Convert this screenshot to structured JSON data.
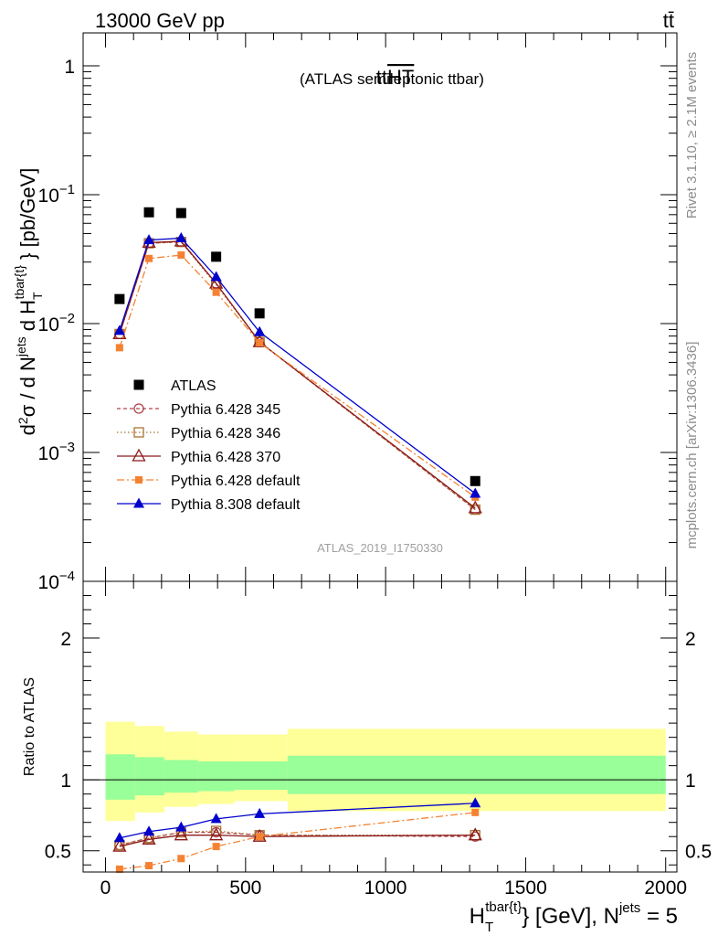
{
  "header": {
    "left": "13000 GeV pp",
    "right": "tt̄"
  },
  "side_labels": {
    "rivet": "Rivet 3.1.10, ≥ 2.1M events",
    "mcplots": "mcplots.cern.ch [arXiv:1306.3436]"
  },
  "chart_data": [
    {
      "type": "line",
      "title": "tt",
      "title_overline": "HT",
      "subtitle": "(ATLAS semileptonic ttbar)",
      "watermark": "ATLAS_2019_I1750330",
      "ylabel": "d²σ / d N^jets d H_T^tbar{t} [pb/GeV]",
      "yscale": "log",
      "ylim": [
        0.0001,
        1.8
      ],
      "xlim": [
        -80,
        2040
      ],
      "ytick_labels": [
        "1",
        "10",
        "10",
        "10",
        "10"
      ],
      "ytick_exponents": [
        "",
        "−1",
        "−2",
        "−3",
        "−4"
      ],
      "legend_position": "lower-left",
      "x": [
        50,
        155,
        270,
        395,
        550,
        1320
      ],
      "series": [
        {
          "name": "ATLAS",
          "color": "#000000",
          "marker": "square",
          "values": [
            0.0155,
            0.073,
            0.072,
            0.033,
            0.012,
            0.0006
          ]
        },
        {
          "name": "Pythia 6.428 345",
          "color": "#b04048",
          "marker": "circle-open",
          "dash": "4,3",
          "values": [
            0.0083,
            0.042,
            0.043,
            0.0205,
            0.0072,
            0.00036
          ]
        },
        {
          "name": "Pythia 6.428 346",
          "color": "#a87430",
          "marker": "square-open",
          "dash": "1.5,2.5",
          "values": [
            0.0083,
            0.042,
            0.043,
            0.02,
            0.0072,
            0.00036
          ]
        },
        {
          "name": "Pythia 6.428 370",
          "color": "#8b1a1a",
          "marker": "triangle-open",
          "dash": "",
          "values": [
            0.0083,
            0.0425,
            0.0435,
            0.0205,
            0.0072,
            0.00037
          ]
        },
        {
          "name": "Pythia 6.428 default",
          "color": "#f58232",
          "marker": "square-small",
          "dash": "8,3,2,3",
          "values": [
            0.0065,
            0.032,
            0.034,
            0.0175,
            0.0071,
            0.00045
          ]
        },
        {
          "name": "Pythia 8.308 default",
          "color": "#0000cc",
          "marker": "triangle",
          "dash": "",
          "values": [
            0.0088,
            0.0445,
            0.046,
            0.023,
            0.0086,
            0.00048
          ]
        }
      ]
    },
    {
      "type": "line",
      "ylabel": "Ratio to ATLAS",
      "xlabel": "H_T^tbar{t} [GeV], N^jets = 5",
      "ylim": [
        0.35,
        2.4
      ],
      "xlim": [
        -80,
        2040
      ],
      "xticks": [
        0,
        500,
        1000,
        1500,
        2000
      ],
      "yticks": [
        0.5,
        1,
        2
      ],
      "ytick_labels": [
        "0.5",
        "1",
        "2"
      ],
      "reference": 1,
      "bands": [
        {
          "x0": 0,
          "x1": 105,
          "yellow": [
            0.71,
            1.41
          ],
          "green": [
            0.86,
            1.18
          ]
        },
        {
          "x0": 105,
          "x1": 210,
          "yellow": [
            0.77,
            1.38
          ],
          "green": [
            0.89,
            1.16
          ]
        },
        {
          "x0": 210,
          "x1": 330,
          "yellow": [
            0.81,
            1.34
          ],
          "green": [
            0.91,
            1.14
          ]
        },
        {
          "x0": 330,
          "x1": 460,
          "yellow": [
            0.83,
            1.32
          ],
          "green": [
            0.92,
            1.13
          ]
        },
        {
          "x0": 460,
          "x1": 650,
          "yellow": [
            0.85,
            1.32
          ],
          "green": [
            0.93,
            1.13
          ]
        },
        {
          "x0": 650,
          "x1": 2000,
          "yellow": [
            0.78,
            1.36
          ],
          "green": [
            0.9,
            1.17
          ]
        }
      ],
      "series": [
        {
          "name": "Pythia 6.428 345",
          "values": [
            0.54,
            0.59,
            0.63,
            0.63,
            0.61,
            0.6
          ]
        },
        {
          "name": "Pythia 6.428 346",
          "values": [
            0.54,
            0.59,
            0.63,
            0.64,
            0.61,
            0.61
          ]
        },
        {
          "name": "Pythia 6.428 370",
          "values": [
            0.53,
            0.58,
            0.61,
            0.61,
            0.6,
            0.61
          ]
        },
        {
          "name": "Pythia 6.428 default",
          "values": [
            0.37,
            0.395,
            0.445,
            0.53,
            0.6,
            0.77
          ]
        },
        {
          "name": "Pythia 8.308 default",
          "values": [
            0.59,
            0.635,
            0.665,
            0.725,
            0.76,
            0.835
          ]
        }
      ]
    }
  ]
}
